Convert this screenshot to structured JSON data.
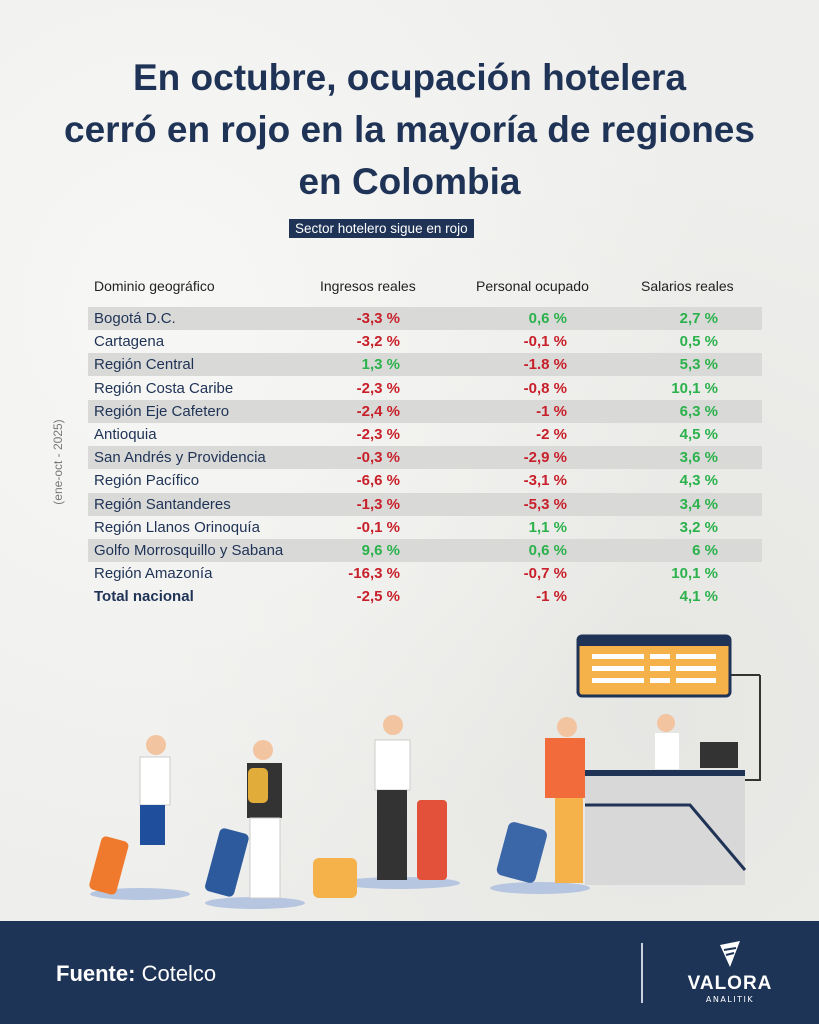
{
  "title": "En octubre, ocupación hotelera\ncerró en rojo en la mayoría de regiones\nen Colombia",
  "subtitle": "Sector hotelero sigue en rojo",
  "side_note": "(ene-oct - 2025)",
  "colors": {
    "navy": "#1f3356",
    "negative": "#c8202a",
    "positive": "#2bb24c",
    "footer": "#1e3457"
  },
  "chart_data": {
    "type": "table",
    "columns": [
      "Dominio geográfico",
      "Ingresos reales",
      "Personal ocupado",
      "Salarios reales"
    ],
    "rows": [
      [
        "Bogotá D.C.",
        "-3,3 %",
        "0,6 %",
        "2,7 %"
      ],
      [
        "Cartagena",
        "-3,2 %",
        "-0,1 %",
        "0,5 %"
      ],
      [
        "Región Central",
        "1,3 %",
        "-1.8 %",
        "5,3 %"
      ],
      [
        "Región Costa Caribe",
        "-2,3 %",
        "-0,8 %",
        "10,1 %"
      ],
      [
        "Región Eje Cafetero",
        "-2,4 %",
        "-1 %",
        "6,3 %"
      ],
      [
        "Antioquia",
        "-2,3 %",
        "-2 %",
        "4,5 %"
      ],
      [
        "San Andrés y Providencia",
        "-0,3 %",
        "-2,9 %",
        "3,6 %"
      ],
      [
        "Región Pacífico",
        "-6,6 %",
        "-3,1 %",
        "4,3 %"
      ],
      [
        "Región Santanderes",
        "-1,3 %",
        "-5,3 %",
        "3,4 %"
      ],
      [
        "Región Llanos Orinoquía",
        "-0,1 %",
        "1,1 %",
        "3,2 %"
      ],
      [
        "Golfo Morrosquillo y Sabana",
        "9,6 %",
        "0,6 %",
        "6 %"
      ],
      [
        "Región Amazonía",
        "-16,3 %",
        "-0,7 %",
        "10,1 %"
      ],
      [
        "Total nacional",
        "-2,5 %",
        "-1 %",
        "4,1 %"
      ]
    ]
  },
  "footer": {
    "source_label": "Fuente:",
    "source": "Cotelco",
    "logo_text": "VALORA",
    "logo_sub": "ANALITIK"
  }
}
